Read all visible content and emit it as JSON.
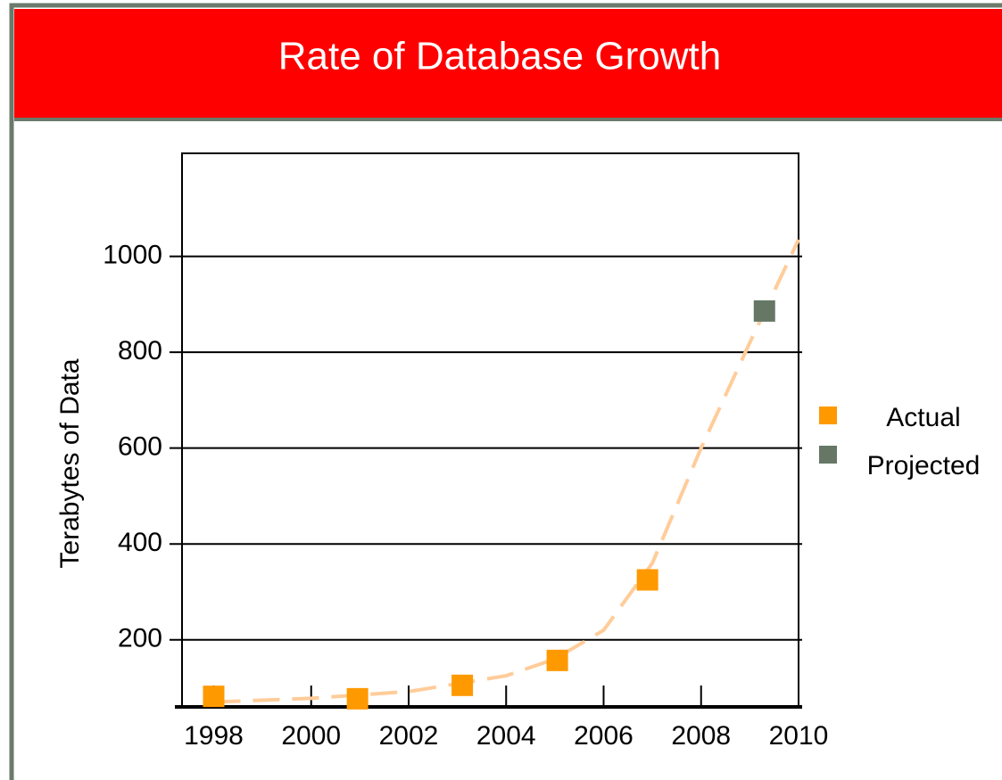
{
  "chart_data": {
    "type": "scatter",
    "title": "Rate of Database Growth",
    "y_label": "Terabytes of Data",
    "series": [
      {
        "name": "Actual",
        "color": "#ff9900",
        "x": [
          1998,
          2000.95,
          2003.1,
          2005.05,
          2006.9
        ],
        "values": [
          82,
          77,
          105,
          157,
          325
        ]
      },
      {
        "name": "Projected",
        "color": "#667766",
        "x": [
          2009.3
        ],
        "values": [
          886
        ]
      }
    ],
    "trend": {
      "color": "#ffcc99",
      "x": [
        1998,
        2000,
        2002,
        2004,
        2005,
        2006,
        2007,
        2008,
        2009,
        2010
      ],
      "values": [
        70,
        78,
        92,
        125,
        160,
        220,
        360,
        600,
        820,
        1035
      ]
    },
    "xlim": [
      1997.35,
      2010
    ],
    "xticks": [
      1998,
      2000,
      2002,
      2004,
      2006,
      2008,
      2010
    ],
    "ylim": [
      60,
      1215
    ],
    "yticks": [
      200,
      400,
      600,
      800,
      1000
    ],
    "grid": true,
    "legend": "right"
  }
}
